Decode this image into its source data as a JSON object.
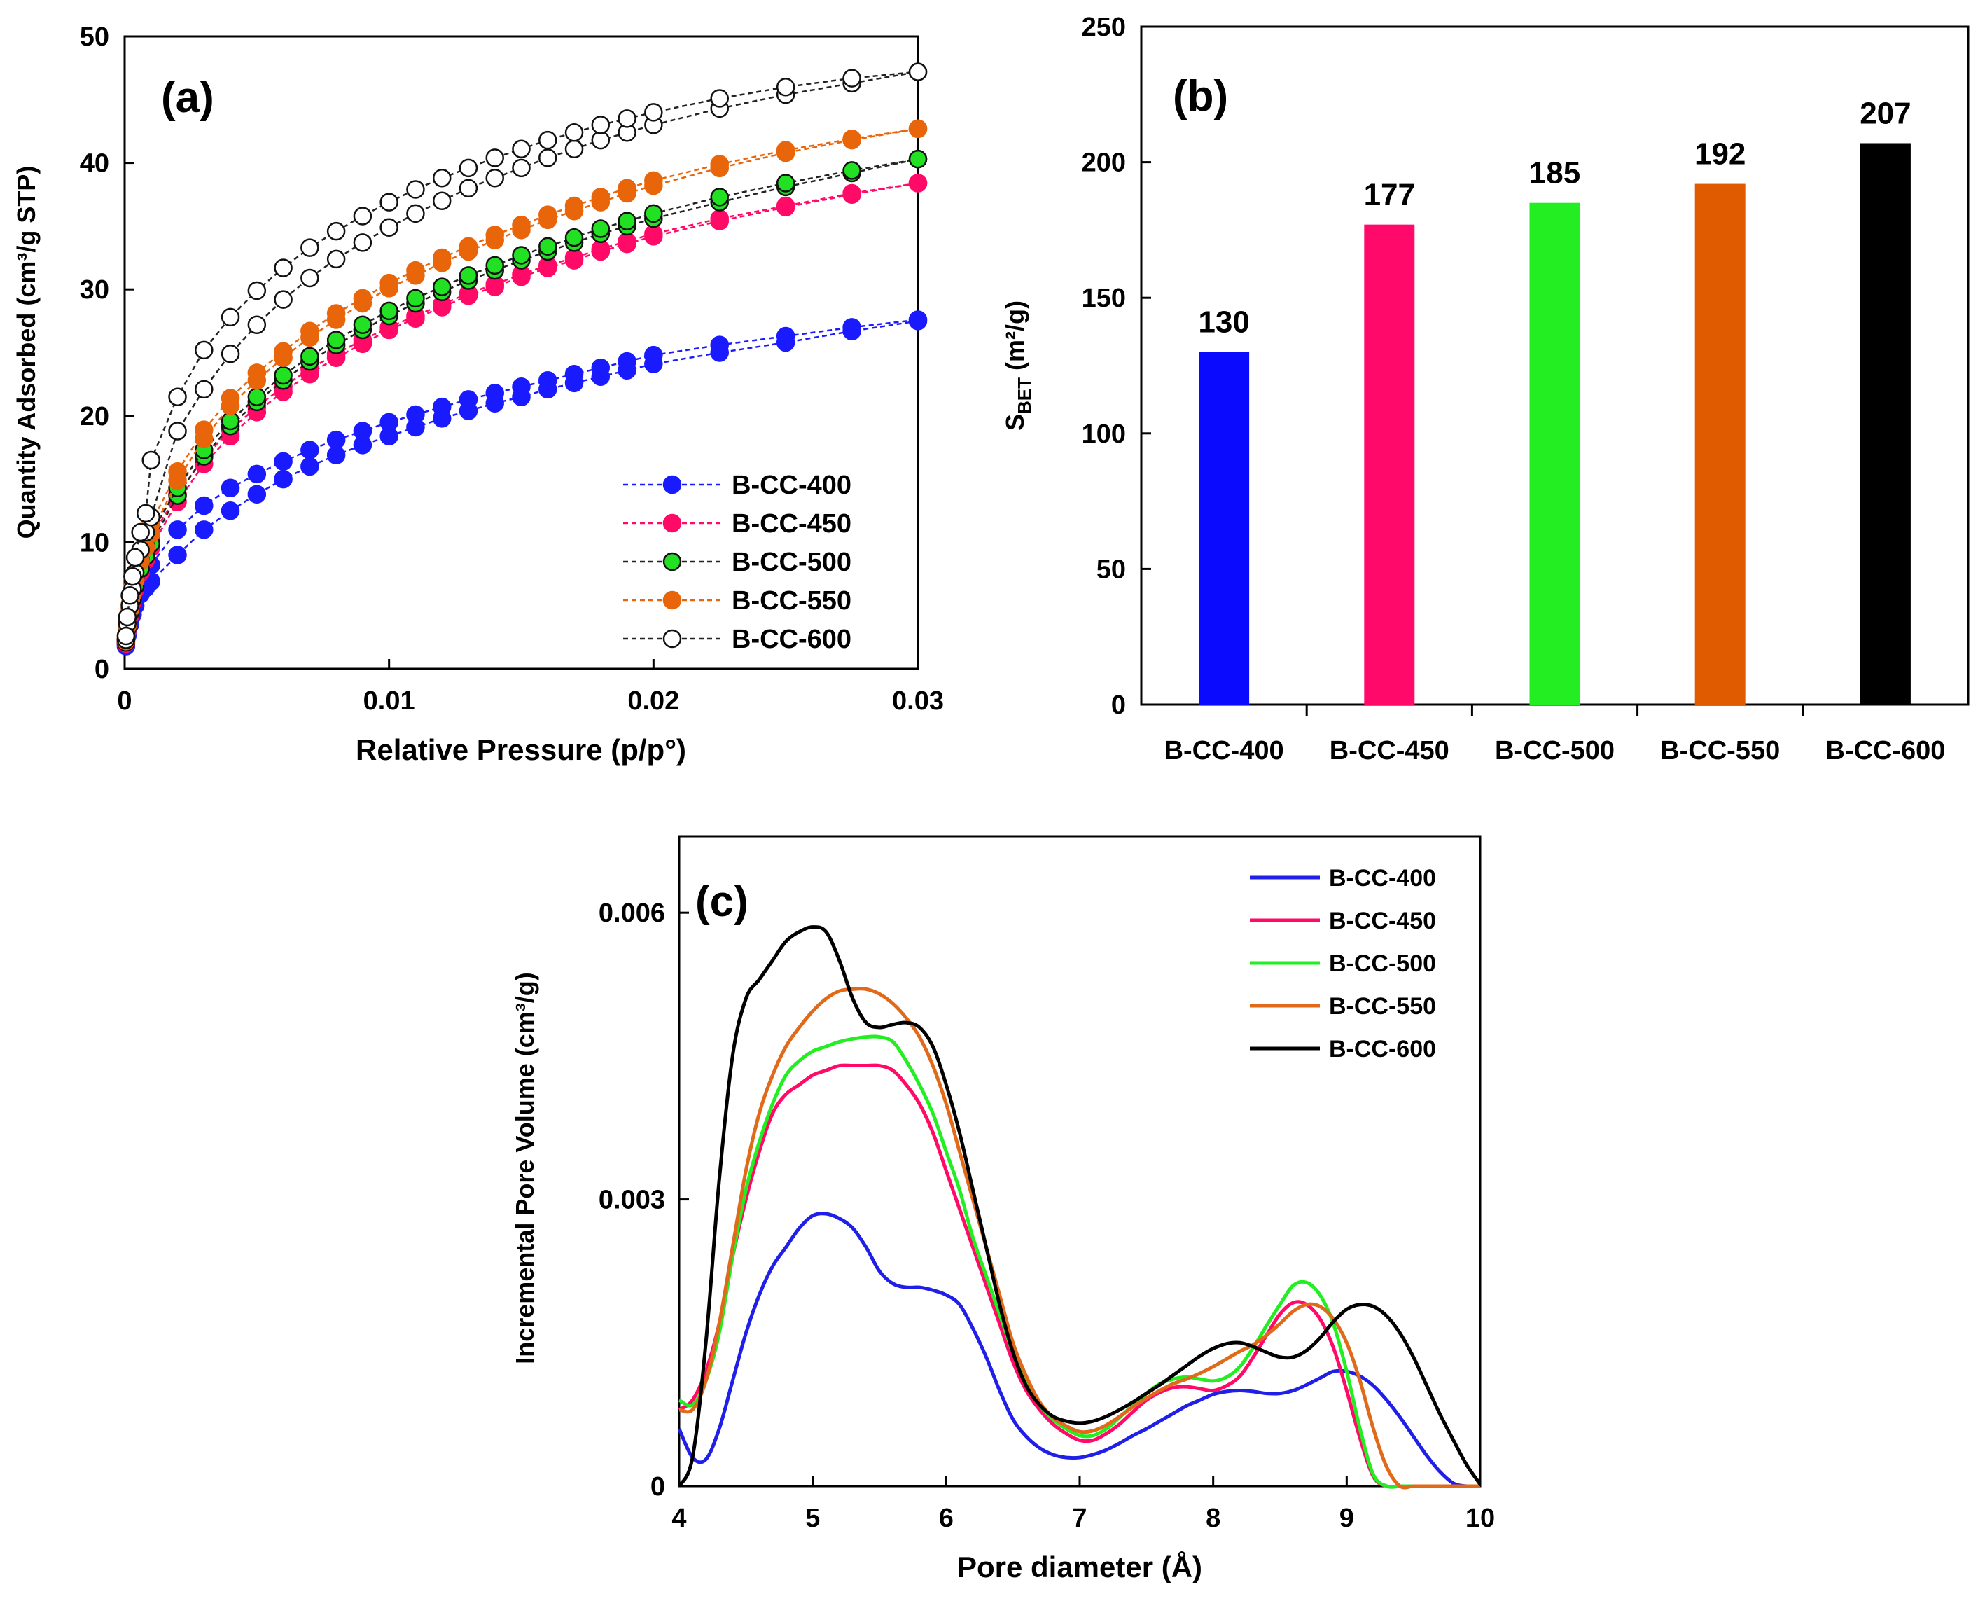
{
  "chart_data": [
    {
      "id": "a",
      "type": "scatter",
      "panel_label": "(a)",
      "xlabel": "Relative Pressure (p/p°)",
      "ylabel": "Quantity Adsorbed (cm³/g STP)",
      "xlim": [
        0,
        0.03
      ],
      "ylim": [
        0,
        50
      ],
      "xticks": [
        "0",
        "0.01",
        "0.02",
        "0.03"
      ],
      "yticks": [
        "0",
        "10",
        "20",
        "30",
        "40",
        "50"
      ],
      "legend_position": "bottom-right",
      "x": [
        5e-05,
        0.0001,
        0.0002,
        0.0003,
        0.0004,
        0.0006,
        0.0008,
        0.001,
        0.002,
        0.003,
        0.004,
        0.005,
        0.006,
        0.007,
        0.008,
        0.009,
        0.01,
        0.011,
        0.012,
        0.013,
        0.014,
        0.015,
        0.016,
        0.017,
        0.018,
        0.019,
        0.02,
        0.0225,
        0.025,
        0.0275,
        0.03
      ],
      "series": [
        {
          "name": "B-CC-400",
          "color": "#1a1aff",
          "fill": "#1a1aff",
          "adsorption": [
            1.8,
            2.6,
            3.5,
            4.3,
            5.0,
            5.9,
            6.4,
            6.9,
            9.0,
            11.0,
            12.5,
            13.8,
            15.0,
            16.0,
            16.9,
            17.7,
            18.4,
            19.1,
            19.8,
            20.4,
            21.0,
            21.5,
            22.1,
            22.6,
            23.1,
            23.6,
            24.1,
            25.0,
            25.8,
            26.7,
            27.5
          ],
          "desorption": [
            2.0,
            2.9,
            3.9,
            4.8,
            5.6,
            6.6,
            7.4,
            8.2,
            11.0,
            12.9,
            14.3,
            15.4,
            16.4,
            17.3,
            18.1,
            18.8,
            19.5,
            20.1,
            20.7,
            21.3,
            21.8,
            22.3,
            22.8,
            23.3,
            23.8,
            24.3,
            24.8,
            25.6,
            26.3,
            27.0,
            27.6
          ]
        },
        {
          "name": "B-CC-450",
          "color": "#ff0a66",
          "fill": "#ff0a66",
          "adsorption": [
            2.0,
            3.0,
            4.2,
            5.3,
            6.3,
            7.6,
            8.6,
            9.6,
            13.2,
            16.2,
            18.4,
            20.3,
            21.9,
            23.3,
            24.6,
            25.7,
            26.8,
            27.7,
            28.6,
            29.5,
            30.2,
            31.0,
            31.7,
            32.3,
            33.0,
            33.6,
            34.2,
            35.4,
            36.5,
            37.5,
            38.4
          ],
          "desorption": [
            2.2,
            3.3,
            4.6,
            5.8,
            6.9,
            8.3,
            9.4,
            10.4,
            13.8,
            16.7,
            18.9,
            20.7,
            22.3,
            23.7,
            24.9,
            26.0,
            27.0,
            27.9,
            28.8,
            29.7,
            30.4,
            31.2,
            31.9,
            32.5,
            33.2,
            33.8,
            34.4,
            35.6,
            36.6,
            37.6,
            38.4
          ]
        },
        {
          "name": "B-CC-500",
          "color": "#111111",
          "fill": "#22e022",
          "adsorption": [
            2.1,
            3.2,
            4.4,
            5.5,
            6.5,
            7.9,
            8.9,
            9.9,
            13.7,
            16.8,
            19.2,
            21.1,
            22.8,
            24.3,
            25.6,
            26.8,
            27.9,
            28.9,
            29.8,
            30.7,
            31.5,
            32.3,
            33.0,
            33.7,
            34.4,
            35.0,
            35.6,
            36.9,
            38.1,
            39.2,
            40.3
          ],
          "desorption": [
            2.3,
            3.5,
            4.8,
            6.0,
            7.1,
            8.6,
            9.7,
            10.7,
            14.3,
            17.3,
            19.6,
            21.5,
            23.2,
            24.7,
            26.0,
            27.2,
            28.3,
            29.3,
            30.2,
            31.1,
            31.9,
            32.7,
            33.4,
            34.1,
            34.8,
            35.4,
            36.0,
            37.3,
            38.4,
            39.4,
            40.3
          ]
        },
        {
          "name": "B-CC-550",
          "color": "#e8650a",
          "fill": "#e8650a",
          "adsorption": [
            2.2,
            3.4,
            4.7,
            5.9,
            7.0,
            8.5,
            9.6,
            10.7,
            14.9,
            18.2,
            20.8,
            22.8,
            24.6,
            26.2,
            27.6,
            28.9,
            30.1,
            31.1,
            32.1,
            33.0,
            33.9,
            34.7,
            35.5,
            36.2,
            36.9,
            37.6,
            38.2,
            39.6,
            40.8,
            41.8,
            42.7
          ],
          "desorption": [
            2.4,
            3.7,
            5.1,
            6.4,
            7.6,
            9.2,
            10.4,
            11.5,
            15.6,
            18.9,
            21.4,
            23.4,
            25.1,
            26.7,
            28.1,
            29.3,
            30.5,
            31.5,
            32.5,
            33.4,
            34.3,
            35.1,
            35.9,
            36.6,
            37.3,
            38.0,
            38.6,
            39.9,
            41.0,
            41.9,
            42.7
          ]
        },
        {
          "name": "B-CC-600",
          "color": "#111111",
          "fill": "#ffffff",
          "adsorption": [
            2.3,
            3.6,
            5.0,
            6.3,
            7.6,
            9.4,
            10.8,
            12.0,
            18.8,
            22.1,
            24.9,
            27.2,
            29.2,
            30.9,
            32.4,
            33.7,
            34.9,
            36.0,
            37.0,
            38.0,
            38.8,
            39.6,
            40.4,
            41.1,
            41.8,
            42.4,
            43.0,
            44.3,
            45.4,
            46.3,
            47.2
          ],
          "desorption": [
            2.6,
            4.1,
            5.8,
            7.3,
            8.8,
            10.8,
            12.3,
            16.5,
            21.5,
            25.2,
            27.8,
            29.9,
            31.7,
            33.3,
            34.6,
            35.8,
            36.9,
            37.9,
            38.8,
            39.6,
            40.4,
            41.1,
            41.8,
            42.4,
            43.0,
            43.5,
            44.0,
            45.1,
            46.0,
            46.7,
            47.2
          ]
        }
      ]
    },
    {
      "id": "b",
      "type": "bar",
      "panel_label": "(b)",
      "ylabel": "S",
      "ylabel_sub": "BET",
      "ylabel_unit": " (m²/g)",
      "ylim": [
        0,
        250
      ],
      "yticks": [
        "0",
        "50",
        "100",
        "150",
        "200",
        "250"
      ],
      "categories": [
        "B-CC-400",
        "B-CC-450",
        "B-CC-500",
        "B-CC-550",
        "B-CC-600"
      ],
      "values": [
        130,
        177,
        185,
        192,
        207
      ],
      "value_labels": [
        "130",
        "177",
        "185",
        "192",
        "207"
      ],
      "colors": [
        "#0a0aff",
        "#ff0a6a",
        "#22ee22",
        "#e05a00",
        "#000000"
      ]
    },
    {
      "id": "c",
      "type": "line",
      "panel_label": "(c)",
      "xlabel": "Pore diameter (Å)",
      "ylabel": "Incremental Pore Volume (cm³/g)",
      "xlim": [
        4,
        10
      ],
      "ylim": [
        0,
        0.0068
      ],
      "xticks": [
        "4",
        "5",
        "6",
        "7",
        "8",
        "9",
        "10"
      ],
      "yticks": [
        "0",
        "0.003",
        "0.006"
      ],
      "yticks_values": [
        0,
        0.003,
        0.006
      ],
      "legend_position": "top-right",
      "x": [
        4.0,
        4.1,
        4.2,
        4.3,
        4.4,
        4.5,
        4.6,
        4.7,
        4.8,
        4.9,
        5.0,
        5.1,
        5.2,
        5.3,
        5.4,
        5.5,
        5.6,
        5.7,
        5.8,
        5.9,
        6.0,
        6.1,
        6.2,
        6.3,
        6.4,
        6.5,
        6.6,
        6.7,
        6.8,
        6.9,
        7.0,
        7.1,
        7.2,
        7.3,
        7.4,
        7.5,
        7.6,
        7.7,
        7.8,
        7.9,
        8.0,
        8.1,
        8.2,
        8.3,
        8.4,
        8.5,
        8.6,
        8.7,
        8.8,
        8.9,
        9.0,
        9.1,
        9.2,
        9.3,
        9.4,
        9.5,
        9.6,
        9.7,
        9.8,
        9.9,
        10.0
      ],
      "series": [
        {
          "name": "B-CC-400",
          "color": "#1f1fe8",
          "values": [
            0.0006,
            0.0003,
            0.00028,
            0.0006,
            0.0011,
            0.0016,
            0.002,
            0.0023,
            0.0025,
            0.0027,
            0.00283,
            0.00285,
            0.0028,
            0.0027,
            0.0025,
            0.00225,
            0.00212,
            0.00208,
            0.00208,
            0.00205,
            0.002,
            0.0019,
            0.00165,
            0.00135,
            0.001,
            0.0007,
            0.00052,
            0.0004,
            0.00033,
            0.0003,
            0.0003,
            0.00033,
            0.00038,
            0.00045,
            0.00053,
            0.0006,
            0.00068,
            0.00076,
            0.00084,
            0.0009,
            0.00096,
            0.00099,
            0.001,
            0.00099,
            0.00097,
            0.00097,
            0.001,
            0.00106,
            0.00113,
            0.0012,
            0.0012,
            0.00115,
            0.00105,
            0.0009,
            0.00072,
            0.00052,
            0.00032,
            0.00015,
            3e-05,
            0.0,
            0.0
          ]
        },
        {
          "name": "B-CC-450",
          "color": "#ff0a66",
          "values": [
            0.0008,
            0.0009,
            0.0012,
            0.0017,
            0.0024,
            0.003,
            0.0035,
            0.0039,
            0.0041,
            0.0042,
            0.0043,
            0.00435,
            0.0044,
            0.0044,
            0.0044,
            0.0044,
            0.00435,
            0.0042,
            0.004,
            0.0037,
            0.0033,
            0.0029,
            0.0025,
            0.0021,
            0.0017,
            0.0013,
            0.001,
            0.0008,
            0.00065,
            0.00055,
            0.00048,
            0.00048,
            0.00055,
            0.00065,
            0.00078,
            0.0009,
            0.00098,
            0.00103,
            0.00104,
            0.00102,
            0.001,
            0.00105,
            0.00115,
            0.00135,
            0.00158,
            0.0018,
            0.00192,
            0.0019,
            0.00175,
            0.00145,
            0.001,
            0.0005,
            0.0001,
            0.0,
            0.0,
            0.0,
            0.0,
            0.0,
            0.0,
            0.0,
            0.0
          ]
        },
        {
          "name": "B-CC-500",
          "color": "#22ee22",
          "values": [
            0.0009,
            0.00085,
            0.0011,
            0.0016,
            0.0024,
            0.0031,
            0.0036,
            0.004,
            0.0043,
            0.00445,
            0.00455,
            0.0046,
            0.00465,
            0.00468,
            0.0047,
            0.0047,
            0.00465,
            0.00445,
            0.0042,
            0.0039,
            0.0035,
            0.0031,
            0.0026,
            0.0022,
            0.0018,
            0.0014,
            0.0011,
            0.00085,
            0.0007,
            0.0006,
            0.00053,
            0.00053,
            0.0006,
            0.00072,
            0.00085,
            0.00097,
            0.00107,
            0.00112,
            0.00114,
            0.00112,
            0.0011,
            0.00114,
            0.00125,
            0.00145,
            0.00168,
            0.0019,
            0.0021,
            0.00213,
            0.002,
            0.0017,
            0.0012,
            0.0006,
            0.00012,
            0.0,
            0.0,
            0.0,
            0.0,
            0.0,
            0.0,
            0.0,
            0.0
          ]
        },
        {
          "name": "B-CC-550",
          "color": "#e06a1a",
          "values": [
            0.0008,
            0.0008,
            0.0011,
            0.0017,
            0.0025,
            0.0033,
            0.0039,
            0.0043,
            0.0046,
            0.0048,
            0.00497,
            0.0051,
            0.00518,
            0.0052,
            0.0052,
            0.00515,
            0.00505,
            0.0049,
            0.0047,
            0.0044,
            0.004,
            0.0035,
            0.003,
            0.0025,
            0.002,
            0.0015,
            0.00115,
            0.00088,
            0.00072,
            0.00063,
            0.00057,
            0.00058,
            0.00064,
            0.00073,
            0.00083,
            0.00092,
            0.001,
            0.00107,
            0.00112,
            0.00118,
            0.00125,
            0.00133,
            0.00141,
            0.00148,
            0.00158,
            0.0017,
            0.00183,
            0.0019,
            0.00188,
            0.00175,
            0.0015,
            0.0011,
            0.0006,
            0.0002,
            0.0,
            0.0,
            0.0,
            0.0,
            0.0,
            0.0,
            0.0
          ]
        },
        {
          "name": "B-CC-600",
          "color": "#000000",
          "values": [
            0.0,
            0.0003,
            0.0015,
            0.0032,
            0.0045,
            0.0051,
            0.0053,
            0.0055,
            0.0057,
            0.0058,
            0.00585,
            0.0058,
            0.0055,
            0.0051,
            0.00485,
            0.0048,
            0.00483,
            0.00485,
            0.0048,
            0.0046,
            0.0042,
            0.0037,
            0.0031,
            0.0025,
            0.0019,
            0.0014,
            0.00105,
            0.00085,
            0.00073,
            0.00068,
            0.00066,
            0.00068,
            0.00073,
            0.0008,
            0.00088,
            0.00097,
            0.00106,
            0.00116,
            0.00126,
            0.00136,
            0.00144,
            0.00149,
            0.0015,
            0.00146,
            0.0014,
            0.00135,
            0.00135,
            0.00142,
            0.00155,
            0.00172,
            0.00185,
            0.0019,
            0.00188,
            0.00178,
            0.0016,
            0.00135,
            0.00105,
            0.00075,
            0.00048,
            0.00022,
            2e-05
          ]
        }
      ]
    }
  ]
}
